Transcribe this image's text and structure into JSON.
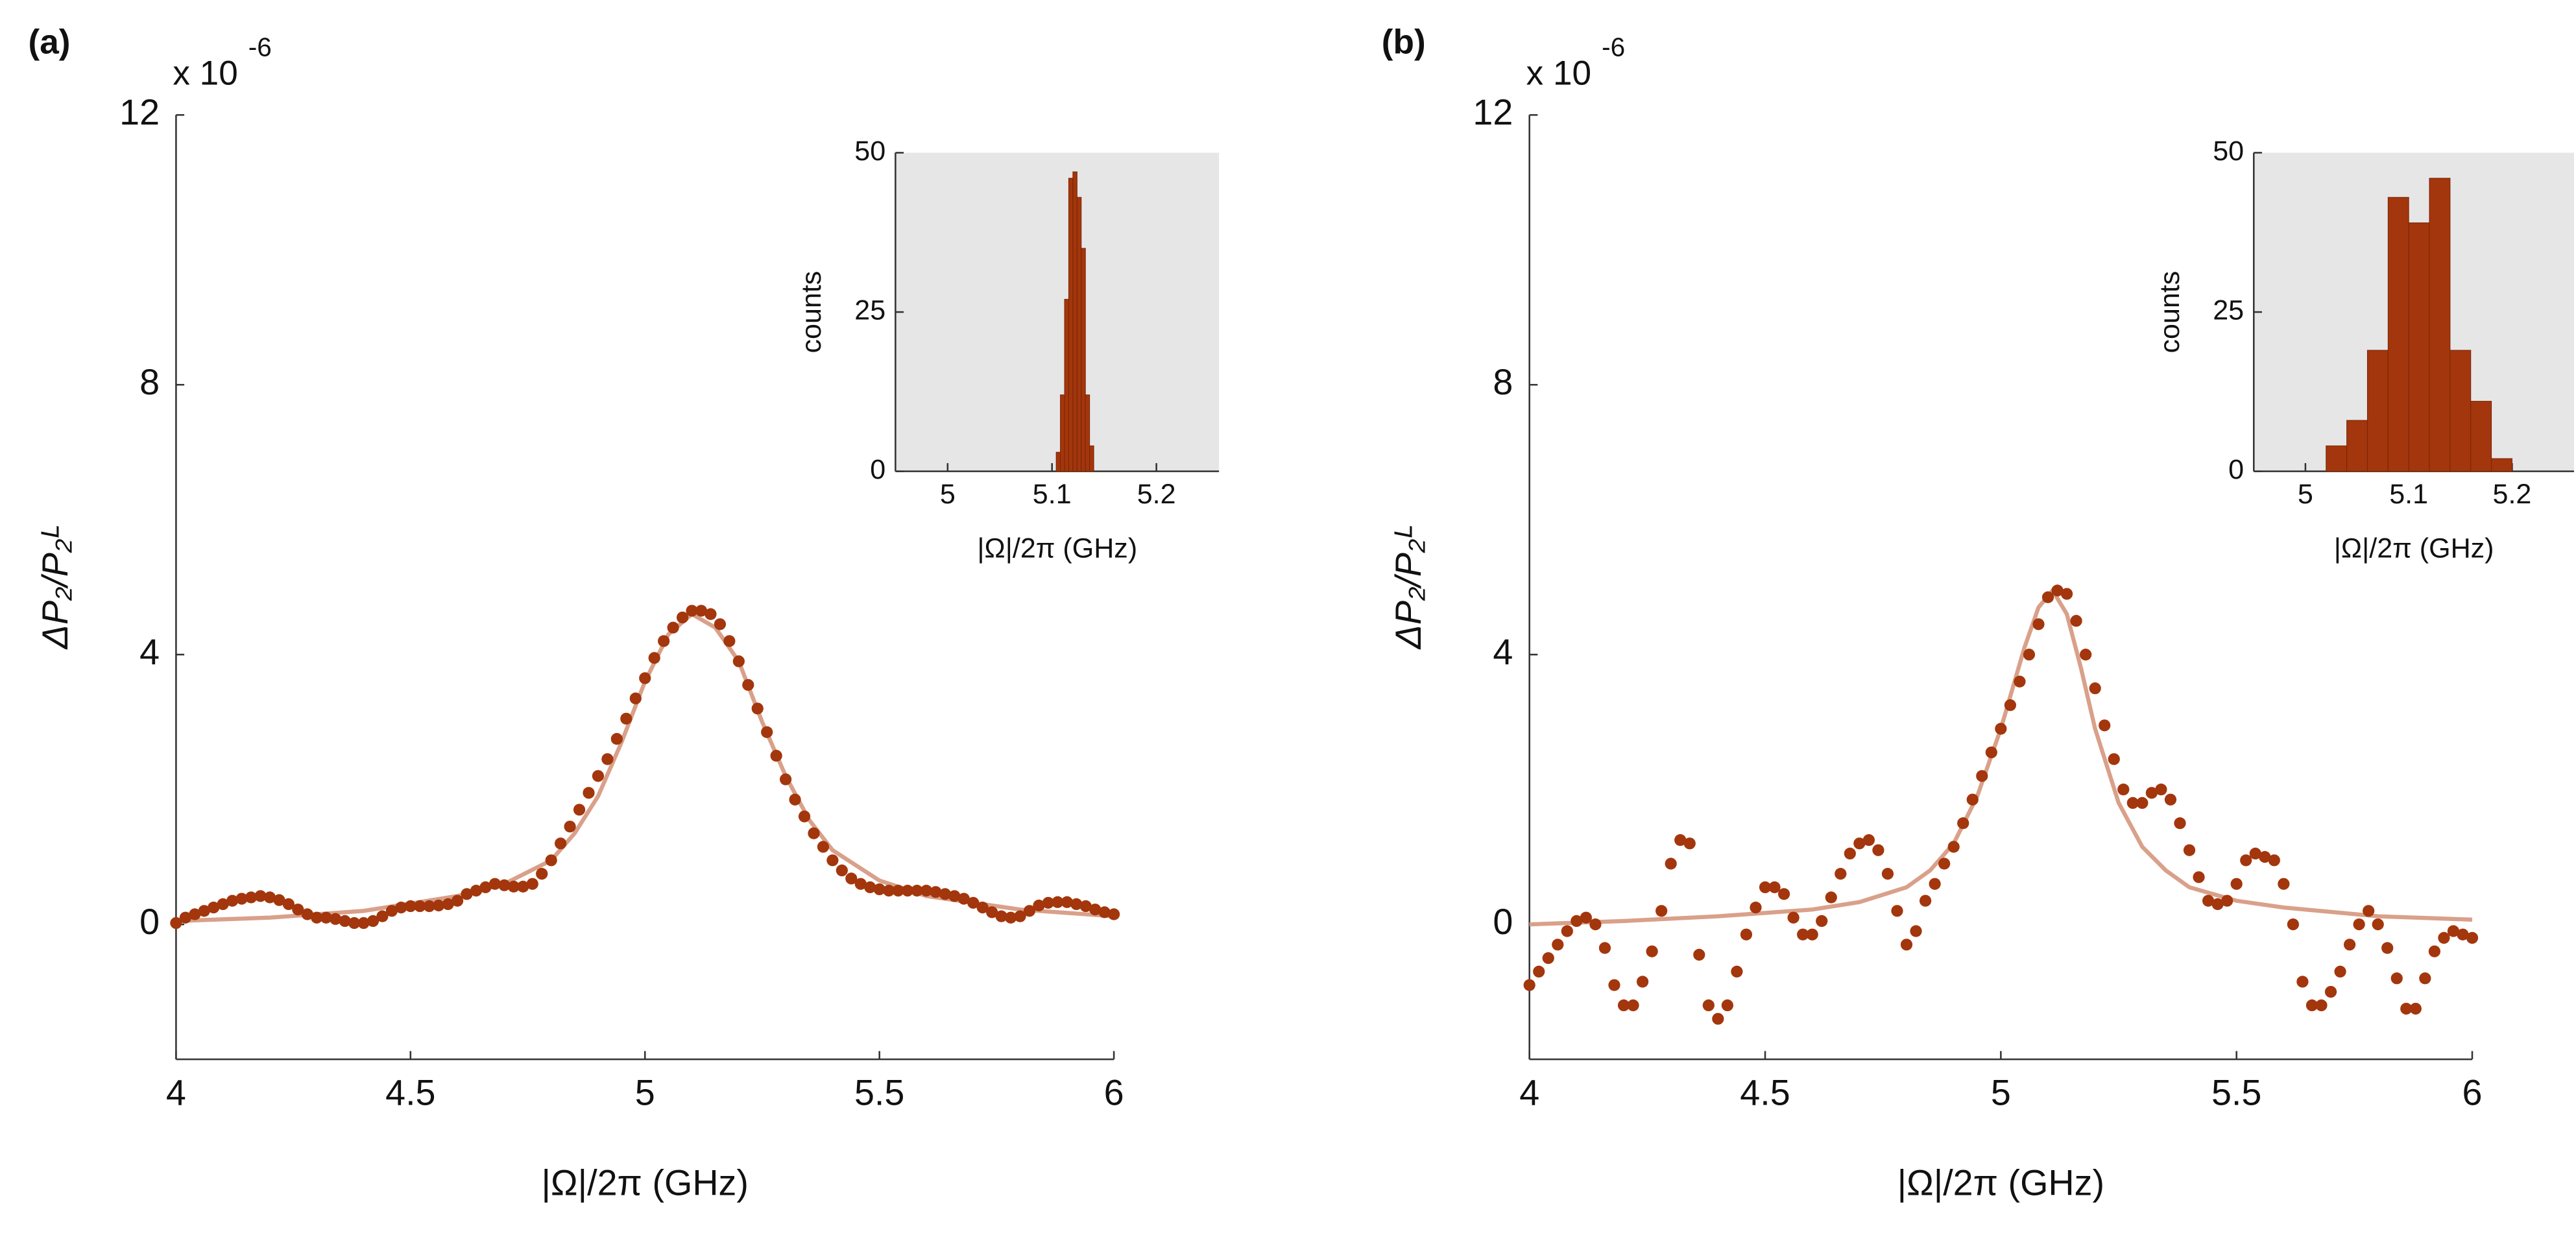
{
  "chart_data": [
    {
      "type": "scatter",
      "panel_label": "(a)",
      "scale_label": "x 10",
      "scale_exponent": "-6",
      "x_label": "|Ω|/2π (GHz)",
      "y_label": "ΔP₂/P₂ᴸ",
      "xlim": [
        4,
        6
      ],
      "xticks": [
        4,
        4.5,
        5,
        5.5,
        6
      ],
      "ylim": [
        -2,
        12
      ],
      "yticks": [
        0,
        4,
        8,
        12
      ],
      "series": [
        {
          "type": "line",
          "color": "#d9a08a",
          "x": [
            4,
            4.2,
            4.4,
            4.6,
            4.7,
            4.8,
            4.85,
            4.9,
            4.95,
            5.0,
            5.05,
            5.1,
            5.15,
            5.2,
            5.25,
            5.3,
            5.35,
            5.4,
            5.5,
            5.6,
            5.8,
            6.0
          ],
          "values": [
            0.05,
            0.1,
            0.2,
            0.42,
            0.6,
            0.95,
            1.35,
            1.9,
            2.7,
            3.6,
            4.3,
            4.6,
            4.4,
            3.9,
            3.0,
            2.2,
            1.55,
            1.1,
            0.65,
            0.42,
            0.22,
            0.12
          ]
        },
        {
          "type": "scatter",
          "color": "#a3360c",
          "x": [
            4,
            4.02,
            4.04,
            4.06,
            4.08,
            4.1,
            4.12,
            4.14,
            4.16,
            4.18,
            4.2,
            4.22,
            4.24,
            4.26,
            4.28,
            4.3,
            4.32,
            4.34,
            4.36,
            4.38,
            4.4,
            4.42,
            4.44,
            4.46,
            4.48,
            4.5,
            4.52,
            4.54,
            4.56,
            4.58,
            4.6,
            4.62,
            4.64,
            4.66,
            4.68,
            4.7,
            4.72,
            4.74,
            4.76,
            4.78,
            4.8,
            4.82,
            4.84,
            4.86,
            4.88,
            4.9,
            4.92,
            4.94,
            4.96,
            4.98,
            5,
            5.02,
            5.04,
            5.06,
            5.08,
            5.1,
            5.12,
            5.14,
            5.16,
            5.18,
            5.2,
            5.22,
            5.24,
            5.26,
            5.28,
            5.3,
            5.32,
            5.34,
            5.36,
            5.38,
            5.4,
            5.42,
            5.44,
            5.46,
            5.48,
            5.5,
            5.52,
            5.54,
            5.56,
            5.58,
            5.6,
            5.62,
            5.64,
            5.66,
            5.68,
            5.7,
            5.72,
            5.74,
            5.76,
            5.78,
            5.8,
            5.82,
            5.84,
            5.86,
            5.88,
            5.9,
            5.92,
            5.94,
            5.96,
            5.98,
            6
          ],
          "values": [
            0.02,
            0.1,
            0.15,
            0.2,
            0.25,
            0.3,
            0.35,
            0.38,
            0.4,
            0.42,
            0.4,
            0.36,
            0.3,
            0.22,
            0.15,
            0.1,
            0.1,
            0.08,
            0.05,
            0.02,
            0.02,
            0.05,
            0.12,
            0.2,
            0.25,
            0.27,
            0.27,
            0.27,
            0.28,
            0.3,
            0.35,
            0.45,
            0.5,
            0.55,
            0.6,
            0.58,
            0.56,
            0.56,
            0.6,
            0.75,
            0.95,
            1.2,
            1.45,
            1.7,
            1.95,
            2.2,
            2.45,
            2.75,
            3.05,
            3.35,
            3.65,
            3.95,
            4.2,
            4.4,
            4.55,
            4.65,
            4.65,
            4.6,
            4.45,
            4.2,
            3.9,
            3.55,
            3.2,
            2.85,
            2.5,
            2.15,
            1.85,
            1.6,
            1.35,
            1.15,
            0.95,
            0.8,
            0.68,
            0.6,
            0.55,
            0.52,
            0.5,
            0.5,
            0.5,
            0.5,
            0.5,
            0.48,
            0.45,
            0.42,
            0.38,
            0.32,
            0.25,
            0.18,
            0.12,
            0.1,
            0.12,
            0.2,
            0.28,
            0.32,
            0.33,
            0.33,
            0.3,
            0.27,
            0.22,
            0.18,
            0.15
          ]
        }
      ]
    },
    {
      "type": "histogram",
      "x_label": "|Ω|/2π (GHz)",
      "y_label": "counts",
      "color": "#a3360c",
      "background": "#e6e6e6",
      "xlim": [
        4.95,
        5.26
      ],
      "xticks": [
        5,
        5.1,
        5.2
      ],
      "ylim": [
        0,
        50
      ],
      "yticks": [
        0,
        25,
        50
      ],
      "bins": [
        5.104,
        5.108,
        5.112,
        5.116,
        5.12,
        5.124,
        5.128,
        5.132,
        5.136,
        5.14
      ],
      "counts": [
        3,
        12,
        27,
        46,
        47,
        43,
        35,
        12,
        4
      ]
    },
    {
      "type": "scatter",
      "panel_label": "(b)",
      "scale_label": "x 10",
      "scale_exponent": "-6",
      "x_label": "|Ω|/2π (GHz)",
      "y_label": "ΔP₂/P₂ᴸ",
      "xlim": [
        4,
        6
      ],
      "xticks": [
        4,
        4.5,
        5,
        5.5,
        6
      ],
      "ylim": [
        -2,
        12
      ],
      "yticks": [
        0,
        4,
        8,
        12
      ],
      "series": [
        {
          "type": "line",
          "color": "#d9a08a",
          "x": [
            4,
            4.2,
            4.4,
            4.6,
            4.7,
            4.8,
            4.85,
            4.9,
            4.95,
            5.0,
            5.05,
            5.08,
            5.11,
            5.14,
            5.17,
            5.2,
            5.25,
            5.3,
            5.35,
            5.4,
            5.5,
            5.6,
            5.8,
            6.0
          ],
          "values": [
            0.0,
            0.05,
            0.12,
            0.22,
            0.33,
            0.55,
            0.8,
            1.2,
            1.9,
            2.9,
            4.1,
            4.7,
            4.95,
            4.6,
            3.8,
            2.9,
            1.8,
            1.15,
            0.8,
            0.55,
            0.35,
            0.25,
            0.12,
            0.07
          ]
        },
        {
          "type": "scatter",
          "color": "#a3360c",
          "x": [
            4,
            4.02,
            4.04,
            4.06,
            4.08,
            4.1,
            4.12,
            4.14,
            4.16,
            4.18,
            4.2,
            4.22,
            4.24,
            4.26,
            4.28,
            4.3,
            4.32,
            4.34,
            4.36,
            4.38,
            4.4,
            4.42,
            4.44,
            4.46,
            4.48,
            4.5,
            4.52,
            4.54,
            4.56,
            4.58,
            4.6,
            4.62,
            4.64,
            4.66,
            4.68,
            4.7,
            4.72,
            4.74,
            4.76,
            4.78,
            4.8,
            4.82,
            4.84,
            4.86,
            4.88,
            4.9,
            4.92,
            4.94,
            4.96,
            4.98,
            5,
            5.02,
            5.04,
            5.06,
            5.08,
            5.1,
            5.12,
            5.14,
            5.16,
            5.18,
            5.2,
            5.22,
            5.24,
            5.26,
            5.28,
            5.3,
            5.32,
            5.34,
            5.36,
            5.38,
            5.4,
            5.42,
            5.44,
            5.46,
            5.48,
            5.5,
            5.52,
            5.54,
            5.56,
            5.58,
            5.6,
            5.62,
            5.64,
            5.66,
            5.68,
            5.7,
            5.72,
            5.74,
            5.76,
            5.78,
            5.8,
            5.82,
            5.84,
            5.86,
            5.88,
            5.9,
            5.92,
            5.94,
            5.96,
            5.98,
            6
          ],
          "values": [
            -0.9,
            -0.7,
            -0.5,
            -0.3,
            -0.1,
            0.05,
            0.1,
            0.0,
            -0.35,
            -0.9,
            -1.2,
            -1.2,
            -0.85,
            -0.4,
            0.2,
            0.9,
            1.25,
            1.2,
            -0.45,
            -1.2,
            -1.4,
            -1.2,
            -0.7,
            -0.15,
            0.25,
            0.55,
            0.55,
            0.45,
            0.1,
            -0.15,
            -0.15,
            0.05,
            0.4,
            0.75,
            1.05,
            1.2,
            1.25,
            1.1,
            0.75,
            0.2,
            -0.3,
            -0.1,
            0.35,
            0.6,
            0.9,
            1.15,
            1.5,
            1.85,
            2.2,
            2.55,
            2.9,
            3.25,
            3.6,
            4.0,
            4.45,
            4.85,
            4.95,
            4.9,
            4.5,
            4.0,
            3.5,
            2.95,
            2.45,
            2.0,
            1.8,
            1.8,
            1.95,
            2.0,
            1.85,
            1.5,
            1.1,
            0.7,
            0.35,
            0.3,
            0.35,
            0.6,
            0.95,
            1.05,
            1.0,
            0.95,
            0.6,
            0.0,
            -0.85,
            -1.2,
            -1.2,
            -1.0,
            -0.7,
            -0.3,
            0.0,
            0.2,
            0.0,
            -0.35,
            -0.8,
            -1.25,
            -1.25,
            -0.8,
            -0.4,
            -0.2,
            -0.1,
            -0.15,
            -0.2
          ]
        }
      ]
    },
    {
      "type": "histogram",
      "x_label": "|Ω|/2π (GHz)",
      "y_label": "counts",
      "color": "#a3360c",
      "background": "#e6e6e6",
      "xlim": [
        4.95,
        5.26
      ],
      "xticks": [
        5,
        5.1,
        5.2
      ],
      "ylim": [
        0,
        50
      ],
      "yticks": [
        0,
        25,
        50
      ],
      "bins": [
        5.02,
        5.04,
        5.06,
        5.08,
        5.1,
        5.12,
        5.14,
        5.16,
        5.18,
        5.2
      ],
      "counts": [
        4,
        8,
        19,
        43,
        39,
        46,
        19,
        11,
        2
      ]
    }
  ]
}
